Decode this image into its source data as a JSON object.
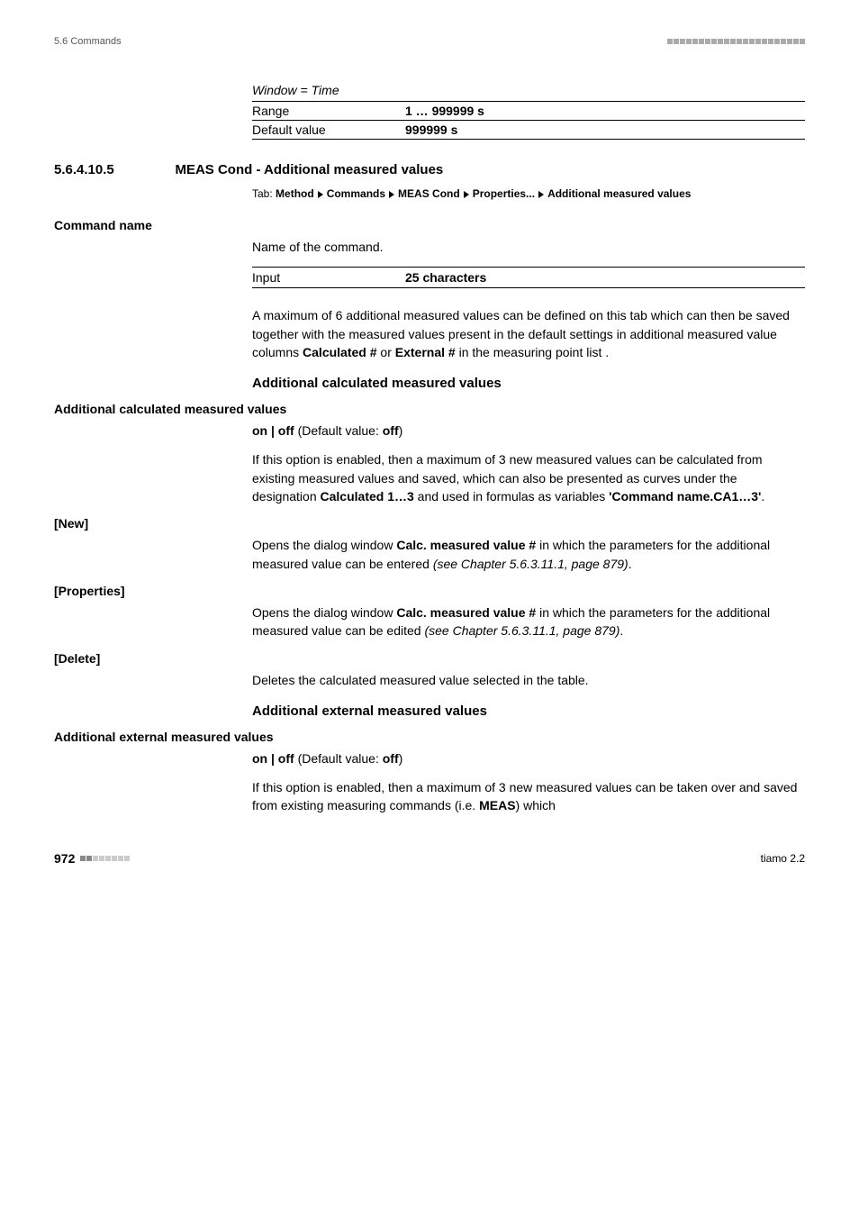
{
  "header": {
    "left": "5.6 Commands"
  },
  "window_time": {
    "label": "Window = Time",
    "rows": [
      {
        "key": "Range",
        "val": "1 … 999999 s"
      },
      {
        "key": "Default value",
        "val": "999999 s"
      }
    ]
  },
  "section": {
    "num": "5.6.4.10.5",
    "title": "MEAS Cond - Additional measured values"
  },
  "tab": {
    "label": "Tab:",
    "parts": [
      "Method",
      "Commands",
      "MEAS Cond",
      "Properties...",
      "Additional measured values"
    ]
  },
  "command_name": {
    "heading": "Command name",
    "line1": "Name of the command.",
    "input_row": {
      "key": "Input",
      "val": "25 characters"
    },
    "para": "A maximum of 6 additional measured values can be defined on this tab which can then be saved together with the measured values present in the default settings in additional measured value columns ",
    "para_bold1": "Calculated #",
    "para_mid": " or ",
    "para_bold2": "External #",
    "para_end": " in the measuring point list ."
  },
  "calc_heading": "Additional calculated measured values",
  "calc": {
    "field": "Additional calculated measured values",
    "onoff_pre": "on | off",
    "onoff_mid": " (Default value: ",
    "onoff_val": "off",
    "onoff_post": ")",
    "para1_a": "If this option is enabled, then a maximum of 3 new measured values can be calculated from existing measured values and saved, which can also be presented as curves under the designation ",
    "para1_b": "Calculated 1…3",
    "para1_c": " and used in formulas as variables ",
    "para1_d": "'Command name.CA1…3'",
    "para1_e": "."
  },
  "new": {
    "label": "[New]",
    "text_a": "Opens the dialog window ",
    "text_b": "Calc. measured value #",
    "text_c": " in which the parameters for the additional measured value can be entered ",
    "text_d": "(see Chapter 5.6.3.11.1, page 879)",
    "text_e": "."
  },
  "properties": {
    "label": "[Properties]",
    "text_a": "Opens the dialog window ",
    "text_b": "Calc. measured value #",
    "text_c": " in which the parameters for the additional measured value can be edited ",
    "text_d": "(see Chapter 5.6.3.11.1, page 879)",
    "text_e": "."
  },
  "delete": {
    "label": "[Delete]",
    "text": "Deletes the calculated measured value selected in the table."
  },
  "ext_heading": "Additional external measured values",
  "ext": {
    "field": "Additional external measured values",
    "onoff_pre": "on | off",
    "onoff_mid": " (Default value: ",
    "onoff_val": "off",
    "onoff_post": ")",
    "para_a": "If this option is enabled, then a maximum of 3 new measured values can be taken over and saved from existing measuring commands (i.e. ",
    "para_b": "MEAS",
    "para_c": ") which"
  },
  "footer": {
    "page": "972",
    "right": "tiamo 2.2"
  }
}
